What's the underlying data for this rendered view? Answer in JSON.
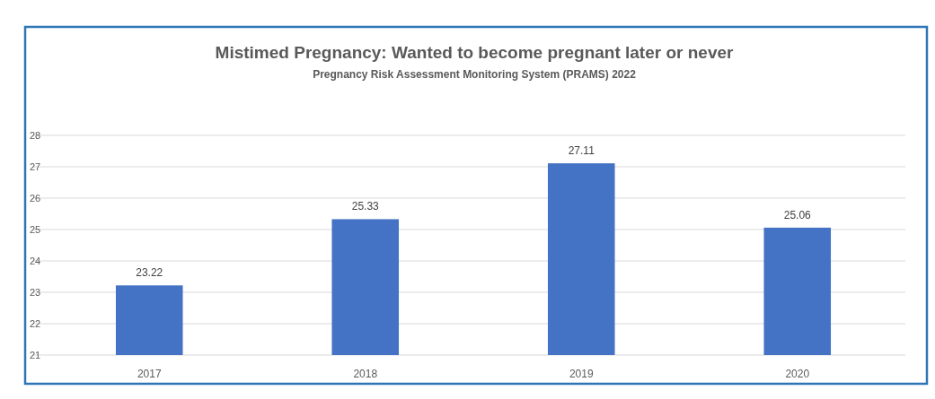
{
  "chart_data": {
    "type": "bar",
    "title": "Mistimed Pregnancy:  Wanted to become pregnant later or never",
    "subtitle": "Pregnancy Risk Assessment Monitoring System (PRAMS) 2022",
    "categories": [
      "2017",
      "2018",
      "2019",
      "2020"
    ],
    "values": [
      23.22,
      25.33,
      27.11,
      25.06
    ],
    "color": "#4472c4",
    "ylim": [
      21,
      28
    ],
    "yticks": [
      21,
      22,
      23,
      24,
      25,
      26,
      27,
      28
    ],
    "grid": "y",
    "data_labels": true
  }
}
